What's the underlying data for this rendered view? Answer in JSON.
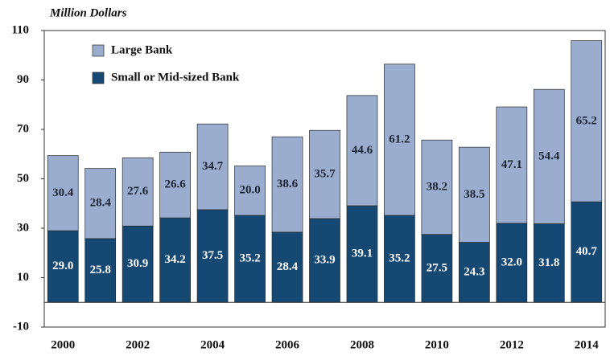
{
  "chart_data": {
    "type": "bar",
    "stacked": true,
    "y_axis_label": "Million Dollars",
    "categories": [
      "2000",
      null,
      "2002",
      null,
      "2004",
      null,
      "2006",
      null,
      "2008",
      null,
      "2010",
      null,
      "2012",
      null,
      "2014"
    ],
    "series": [
      {
        "name": "Small or Mid-sized Bank",
        "color": "#154872",
        "values": [
          29.0,
          25.8,
          30.9,
          34.2,
          37.5,
          35.2,
          28.4,
          33.9,
          39.1,
          35.2,
          27.5,
          24.3,
          32.0,
          31.8,
          40.7
        ],
        "value_labels": [
          "29.0",
          "25.8",
          "30.9",
          "34.2",
          "37.5",
          "35.2",
          "28.4",
          "33.9",
          "39.1",
          "35.2",
          "27.5",
          "24.3",
          "32.0",
          "31.8",
          "40.7"
        ]
      },
      {
        "name": "Large Bank",
        "color": "#9aadcf",
        "values": [
          30.4,
          28.4,
          27.6,
          26.6,
          34.7,
          20.0,
          38.6,
          35.7,
          44.6,
          61.2,
          38.2,
          38.5,
          47.1,
          54.4,
          65.2
        ],
        "value_labels": [
          "30.4",
          "28.4",
          "27.6",
          "26.6",
          "34.7",
          "20.0",
          "38.6",
          "35.7",
          "44.6",
          "61.2",
          "38.2",
          "38.5",
          "47.1",
          "54.4",
          "65.2"
        ]
      }
    ],
    "ylim": [
      -10,
      110
    ],
    "yticks": [
      -10,
      10,
      30,
      50,
      70,
      90,
      110
    ],
    "legend": "top-left"
  }
}
